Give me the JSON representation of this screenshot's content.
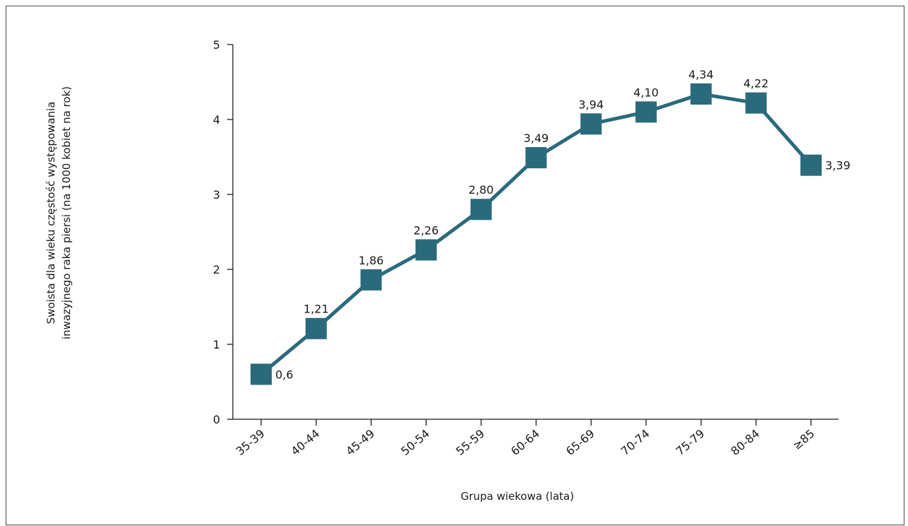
{
  "chart_data": {
    "type": "line",
    "categories": [
      "35-39",
      "40-44",
      "45-49",
      "50-54",
      "55-59",
      "60-64",
      "65-69",
      "70-74",
      "75-79",
      "80-84",
      "≥85"
    ],
    "values": [
      0.6,
      1.21,
      1.86,
      2.26,
      2.8,
      3.49,
      3.94,
      4.1,
      4.34,
      4.22,
      3.39
    ],
    "data_labels": [
      "0,6",
      "1,21",
      "1,86",
      "2,26",
      "2,80",
      "3,49",
      "3,94",
      "4,10",
      "4,34",
      "4,22",
      "3,39"
    ],
    "title": "",
    "xlabel": "Grupa wiekowa (lata)",
    "ylabel_lines": [
      "Swoista dla wieku częstość występowania",
      "inwazyjnego raka piersi (na 1000 kobiet na rok)"
    ],
    "ylim": [
      0,
      5
    ],
    "yticks": [
      0,
      1,
      2,
      3,
      4,
      5
    ],
    "line_color": "#2b6a7c",
    "marker_color": "#2b6a7c",
    "marker": "square",
    "grid": false,
    "legend": "none"
  }
}
